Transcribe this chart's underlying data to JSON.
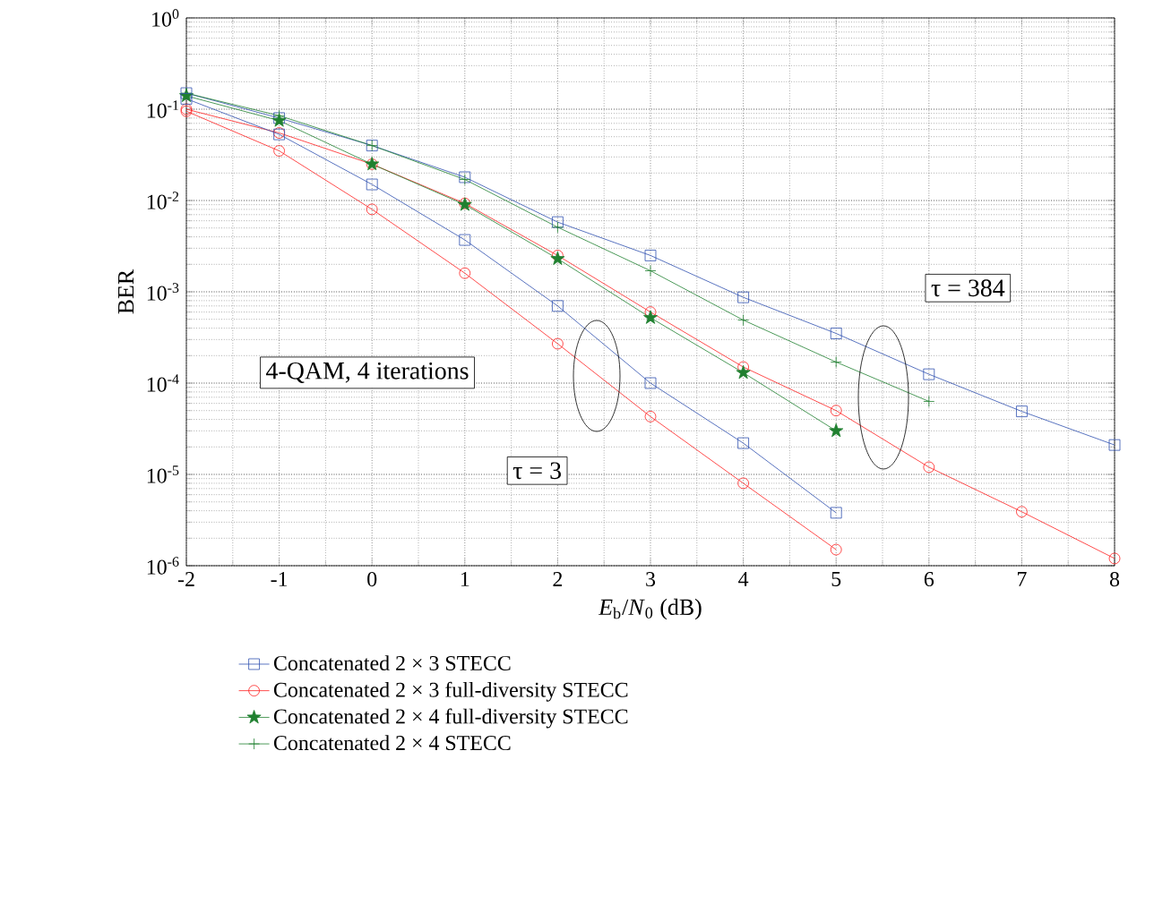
{
  "chart_data": {
    "type": "line",
    "xlabel": "*E*$_{b}$/*N*$_{0}$ (dB)",
    "ylabel": "BER",
    "log": "y",
    "grid": true,
    "legend": "bottom",
    "xlim": [
      -2,
      8
    ],
    "xticks": [
      -2,
      -1,
      0,
      1,
      2,
      3,
      4,
      5,
      6,
      7,
      8
    ],
    "ylim": [
      1e-06,
      1
    ],
    "yticks": [
      {
        "value": 1e-06,
        "label": "10$^{-6}$"
      },
      {
        "value": 1e-05,
        "label": "10$^{-5}$"
      },
      {
        "value": 0.0001,
        "label": "10$^{-4}$"
      },
      {
        "value": 0.001,
        "label": "10$^{-3}$"
      },
      {
        "value": 0.01,
        "label": "10$^{-2}$"
      },
      {
        "value": 0.1,
        "label": "10$^{-1}$"
      },
      {
        "value": 1,
        "label": "10$^{0}$"
      }
    ],
    "annotations": [
      "4-QAM, 4 iterations",
      "τ = 3",
      "τ = 384"
    ],
    "series": [
      {
        "name": "Concatenated 2 × 3 STECC",
        "color": "#3050b0",
        "marker": "square",
        "x": [
          -2,
          -1,
          0,
          1,
          2,
          3,
          4,
          5,
          6,
          7,
          8
        ],
        "values": [
          0.15,
          0.08,
          0.04,
          0.018,
          0.0058,
          0.0025,
          0.00087,
          0.00035,
          0.000125,
          4.9e-05,
          2.1e-05
        ]
      },
      {
        "name": "Concatenated 2 × 3 full-diversity STECC",
        "color": "#ff2020",
        "marker": "circle",
        "x": [
          -2,
          -1,
          0,
          1,
          2,
          3,
          4,
          5,
          6,
          7,
          8
        ],
        "values": [
          0.1,
          0.055,
          0.025,
          0.0093,
          0.0025,
          0.0006,
          0.00015,
          5e-05,
          1.2e-05,
          3.9e-06,
          1.2e-06
        ]
      },
      {
        "name": "Concatenated 2 × 4 full-diversity STECC",
        "color": "#208030",
        "marker": "star",
        "x": [
          -2,
          -1,
          0,
          1,
          2,
          3,
          4,
          5
        ],
        "values": [
          0.14,
          0.075,
          0.025,
          0.009,
          0.0023,
          0.00052,
          0.00013,
          3e-05
        ]
      },
      {
        "name": "Concatenated 2 × 4 STECC",
        "color": "#208030",
        "marker": "cross",
        "x": [
          -2,
          -1,
          0,
          1,
          2,
          3,
          4,
          5,
          6
        ],
        "values": [
          0.15,
          0.085,
          0.04,
          0.017,
          0.0051,
          0.0017,
          0.00049,
          0.00017,
          6.3e-05
        ]
      },
      {
        "color": "#3050b0",
        "marker": "square",
        "x": [
          -2,
          -1,
          0,
          1,
          2,
          3,
          4,
          5
        ],
        "values": [
          0.13,
          0.053,
          0.015,
          0.0037,
          0.0007,
          0.0001,
          2.2e-05,
          3.8e-06
        ]
      },
      {
        "color": "#ff2020",
        "marker": "circle",
        "x": [
          -2,
          -1,
          0,
          1,
          2,
          3,
          4,
          5
        ],
        "values": [
          0.095,
          0.035,
          0.008,
          0.0016,
          0.00027,
          4.3e-05,
          8e-06,
          1.5e-06
        ]
      }
    ]
  }
}
